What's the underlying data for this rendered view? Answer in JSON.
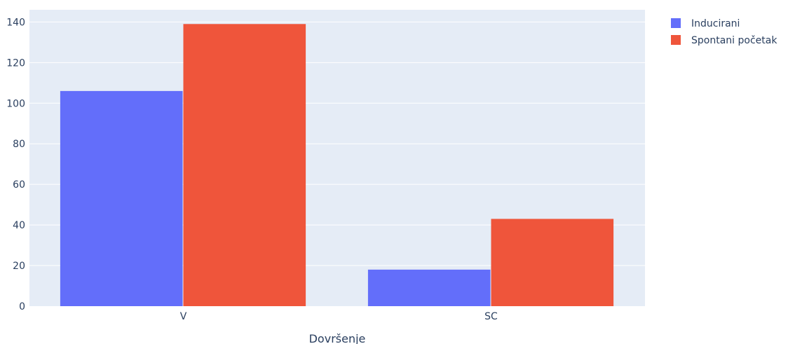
{
  "chart_data": {
    "type": "bar",
    "categories": [
      "V",
      "SC"
    ],
    "series": [
      {
        "name": "Inducirani",
        "values": [
          106,
          18
        ],
        "color": "#636efa"
      },
      {
        "name": "Spontani početak",
        "values": [
          139,
          43
        ],
        "color": "#ef553b"
      }
    ],
    "title": "",
    "xlabel": "Dovršenje",
    "ylabel": "",
    "ylim": [
      0,
      146
    ],
    "yticks": [
      0,
      20,
      40,
      60,
      80,
      100,
      120,
      140
    ],
    "grid": true,
    "legend": "top-right",
    "plot_background": "#e5ecf6"
  }
}
